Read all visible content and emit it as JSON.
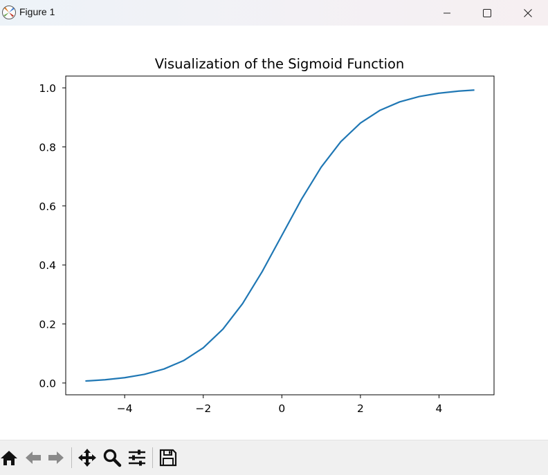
{
  "window": {
    "title": "Figure 1"
  },
  "toolbar": {
    "buttons": [
      "home-icon",
      "back-arrow-icon",
      "forward-arrow-icon",
      "pan-move-icon",
      "zoom-magnifier-icon",
      "configure-subplots-icon",
      "save-floppy-icon"
    ]
  },
  "colors": {
    "line": "#1f77b4",
    "axes": "#000000",
    "toolbar_bg": "#f0f0f0"
  },
  "chart_data": {
    "type": "line",
    "title": "Visualization of the Sigmoid Function",
    "xlabel": "",
    "ylabel": "",
    "x_ticks": [
      -4,
      -2,
      0,
      2,
      4
    ],
    "x_tick_labels": [
      "−4",
      "−2",
      "0",
      "2",
      "4"
    ],
    "y_ticks": [
      0.0,
      0.2,
      0.4,
      0.6,
      0.8,
      1.0
    ],
    "y_tick_labels": [
      "0.0",
      "0.2",
      "0.4",
      "0.6",
      "0.8",
      "1.0"
    ],
    "xlim": [
      -5.5,
      5.4
    ],
    "ylim": [
      -0.04,
      1.04
    ],
    "grid": false,
    "series": [
      {
        "x": [
          -5.0,
          -4.5,
          -4.0,
          -3.5,
          -3.0,
          -2.5,
          -2.0,
          -1.5,
          -1.0,
          -0.5,
          0.0,
          0.5,
          1.0,
          1.5,
          2.0,
          2.5,
          3.0,
          3.5,
          4.0,
          4.5,
          4.9
        ],
        "y": [
          0.0067,
          0.011,
          0.018,
          0.0293,
          0.0474,
          0.0759,
          0.1192,
          0.1824,
          0.2689,
          0.3775,
          0.5,
          0.6225,
          0.7311,
          0.8176,
          0.8808,
          0.9241,
          0.9526,
          0.9707,
          0.982,
          0.989,
          0.9926
        ]
      }
    ]
  }
}
